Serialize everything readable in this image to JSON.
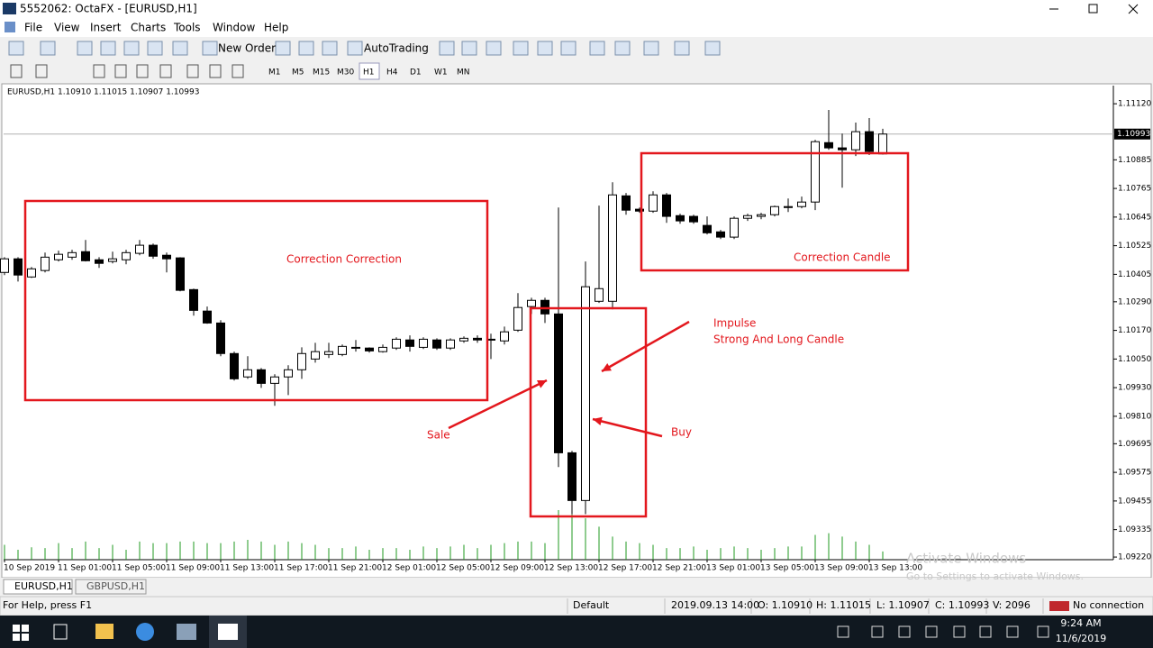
{
  "window": {
    "title": "5552062: OctaFX - [EURUSD,H1]"
  },
  "menu": [
    "File",
    "View",
    "Insert",
    "Charts",
    "Tools",
    "Window",
    "Help"
  ],
  "toolbar": {
    "new_order": "New Order",
    "autotrading": "AutoTrading",
    "timeframes": [
      "M1",
      "M5",
      "M15",
      "M30",
      "H1",
      "H4",
      "D1",
      "W1",
      "MN"
    ]
  },
  "chart_data": {
    "type": "candlestick",
    "header": "EURUSD,H1  1.10910 1.11015 1.10907 1.10993",
    "x": [
      "10 Sep 2019",
      null,
      null,
      null,
      "11 Sep 01:00",
      null,
      null,
      null,
      "11 Sep 05:00",
      null,
      null,
      null,
      "11 Sep 09:00",
      null,
      null,
      null,
      "11 Sep 13:00",
      null,
      null,
      null,
      "11 Sep 17:00",
      null,
      null,
      null,
      "11 Sep 21:00",
      null,
      null,
      null,
      "12 Sep 01:00",
      null,
      null,
      null,
      "12 Sep 05:00",
      null,
      null,
      null,
      "12 Sep 09:00",
      null,
      null,
      null,
      "12 Sep 13:00",
      null,
      null,
      null,
      "12 Sep 17:00",
      null,
      null,
      null,
      "12 Sep 21:00",
      null,
      null,
      null,
      "13 Sep 01:00",
      null,
      null,
      null,
      "13 Sep 05:00",
      null,
      null,
      null,
      "13 Sep 09:00",
      null,
      null,
      null,
      "13 Sep 13:00",
      null
    ],
    "open": [
      1.10413,
      1.1047,
      1.10394,
      1.10421,
      1.10466,
      1.10477,
      1.105,
      1.10466,
      1.10459,
      1.10466,
      1.10493,
      1.10527,
      1.10485,
      1.10474,
      1.10341,
      1.10251,
      1.10201,
      1.10073,
      1.09975,
      1.10005,
      1.09948,
      1.09975,
      1.10005,
      1.1005,
      1.10069,
      1.10069,
      1.10096,
      1.10096,
      1.10081,
      1.10096,
      1.1013,
      1.10099,
      1.1013,
      1.10096,
      1.10126,
      1.10137,
      1.10133,
      1.10126,
      1.10171,
      1.1027,
      1.10296,
      1.10239,
      1.09657,
      1.09457,
      1.10292,
      1.10292,
      1.10734,
      1.10678,
      1.1067,
      1.10738,
      1.10651,
      1.10648,
      1.1061,
      1.10583,
      1.10561,
      1.1064,
      1.10648,
      1.10655,
      1.10685,
      1.10689,
      1.10708,
      1.10957,
      1.10935,
      1.10927,
      1.11003,
      1.1091
    ],
    "high": [
      1.10477,
      1.10477,
      1.10436,
      1.10496,
      1.10504,
      1.10508,
      1.10549,
      1.10477,
      1.105,
      1.10508,
      1.10549,
      1.10534,
      1.10496,
      1.10477,
      1.10345,
      1.1027,
      1.10213,
      1.10081,
      1.10062,
      1.10012,
      1.09986,
      1.10024,
      1.10099,
      1.10118,
      1.10118,
      1.10111,
      1.1013,
      1.10099,
      1.10111,
      1.10141,
      1.10149,
      1.10141,
      1.10137,
      1.10137,
      1.10145,
      1.10149,
      1.10156,
      1.10186,
      1.10326,
      1.10307,
      1.10307,
      1.10685,
      1.09665,
      1.10459,
      1.10693,
      1.10791,
      1.10746,
      1.10685,
      1.10753,
      1.10746,
      1.10659,
      1.10655,
      1.10648,
      1.10591,
      1.10648,
      1.10659,
      1.10663,
      1.10693,
      1.10723,
      1.10731,
      1.10969,
      1.11094,
      1.10995,
      1.11041,
      1.1106,
      1.11015
    ],
    "low": [
      1.10402,
      1.10375,
      1.1039,
      1.10413,
      1.10459,
      1.10466,
      1.10459,
      1.10432,
      1.10451,
      1.10447,
      1.10485,
      1.1047,
      1.10413,
      1.10334,
      1.10232,
      1.10198,
      1.10062,
      1.0996,
      1.09967,
      1.09929,
      1.09854,
      1.09899,
      1.09967,
      1.10035,
      1.10054,
      1.10062,
      1.10081,
      1.10077,
      1.10077,
      1.10088,
      1.10081,
      1.10092,
      1.10088,
      1.10088,
      1.10118,
      1.10118,
      1.1005,
      1.10111,
      1.10164,
      1.10239,
      1.10201,
      1.09597,
      1.094,
      1.094,
      1.10285,
      1.10258,
      1.10655,
      1.10663,
      1.10663,
      1.10621,
      1.10617,
      1.10617,
      1.10572,
      1.10553,
      1.10553,
      1.10629,
      1.10636,
      1.10648,
      1.10666,
      1.10682,
      1.10674,
      1.10927,
      1.10768,
      1.10901,
      1.10905,
      1.10907
    ],
    "close": [
      1.1047,
      1.10402,
      1.10428,
      1.10477,
      1.10489,
      1.10496,
      1.10462,
      1.10451,
      1.1047,
      1.10496,
      1.10527,
      1.10481,
      1.1047,
      1.10338,
      1.10254,
      1.10201,
      1.10073,
      1.09967,
      1.10005,
      1.09948,
      1.09975,
      1.10005,
      1.10073,
      1.10081,
      1.10081,
      1.10103,
      1.10099,
      1.10084,
      1.10099,
      1.10133,
      1.10103,
      1.10133,
      1.10096,
      1.1013,
      1.10137,
      1.1013,
      1.1013,
      1.10164,
      1.10266,
      1.10296,
      1.10239,
      1.09657,
      1.09457,
      1.10353,
      1.10345,
      1.10738,
      1.10674,
      1.1067,
      1.10738,
      1.10648,
      1.10629,
      1.10625,
      1.10579,
      1.10561,
      1.1064,
      1.10651,
      1.10655,
      1.10689,
      1.10689,
      1.10708,
      1.10961,
      1.10935,
      1.10927,
      1.11003,
      1.1092,
      1.10993
    ],
    "volumes": [
      18,
      12,
      15,
      14,
      20,
      14,
      22,
      14,
      18,
      12,
      22,
      20,
      20,
      22,
      22,
      20,
      20,
      22,
      24,
      22,
      18,
      22,
      20,
      18,
      14,
      14,
      16,
      12,
      14,
      14,
      12,
      16,
      14,
      16,
      18,
      14,
      18,
      20,
      22,
      22,
      20,
      60,
      55,
      50,
      40,
      28,
      22,
      20,
      18,
      14,
      14,
      16,
      12,
      14,
      16,
      14,
      12,
      14,
      16,
      16,
      30,
      32,
      28,
      22,
      18,
      10
    ],
    "ylim": [
      1.09209,
      1.11196
    ],
    "yticks": [
      {
        "value": 1.1112,
        "label": "1.11120"
      },
      1.10885,
      1.10765,
      1.10645,
      1.10525,
      1.10405,
      {
        "value": 1.1029,
        "label": "1.10290"
      },
      {
        "value": 1.1017,
        "label": "1.10170"
      },
      {
        "value": 1.1005,
        "label": "1.10050"
      },
      {
        "value": 1.0993,
        "label": "1.09930"
      },
      {
        "value": 1.0981,
        "label": "1.09810"
      },
      1.09695,
      1.09575,
      1.09455,
      1.09335,
      {
        "value": 1.0922,
        "label": "1.09220"
      }
    ],
    "price_line": 1.10993,
    "grid": false,
    "up_color": "#ffffff",
    "down_color": "#000000",
    "volume_color": "#1f9a1f",
    "annotation_color": "#e3171d",
    "annotations": [
      "Correction Correction",
      "Correction Candle",
      "Impulse",
      "Strong And Long Candle",
      "Sale",
      "Buy"
    ]
  },
  "tabs": [
    "EURUSD,H1",
    "GBPUSD,H1"
  ],
  "status_bar": {
    "help": "For Help, press F1",
    "profile": "Default",
    "time": "2019.09.13 14:00",
    "open": "O: 1.10910",
    "high": "H: 1.11015",
    "low": "L: 1.10907",
    "close": "C: 1.10993",
    "volume": "V: 2096",
    "connection": "No connection"
  },
  "taskbar": {
    "time": "9:24 AM",
    "date": "11/6/2019"
  },
  "watermark": {
    "title": "Activate Windows",
    "subtitle": "Go to Settings to activate Windows."
  }
}
